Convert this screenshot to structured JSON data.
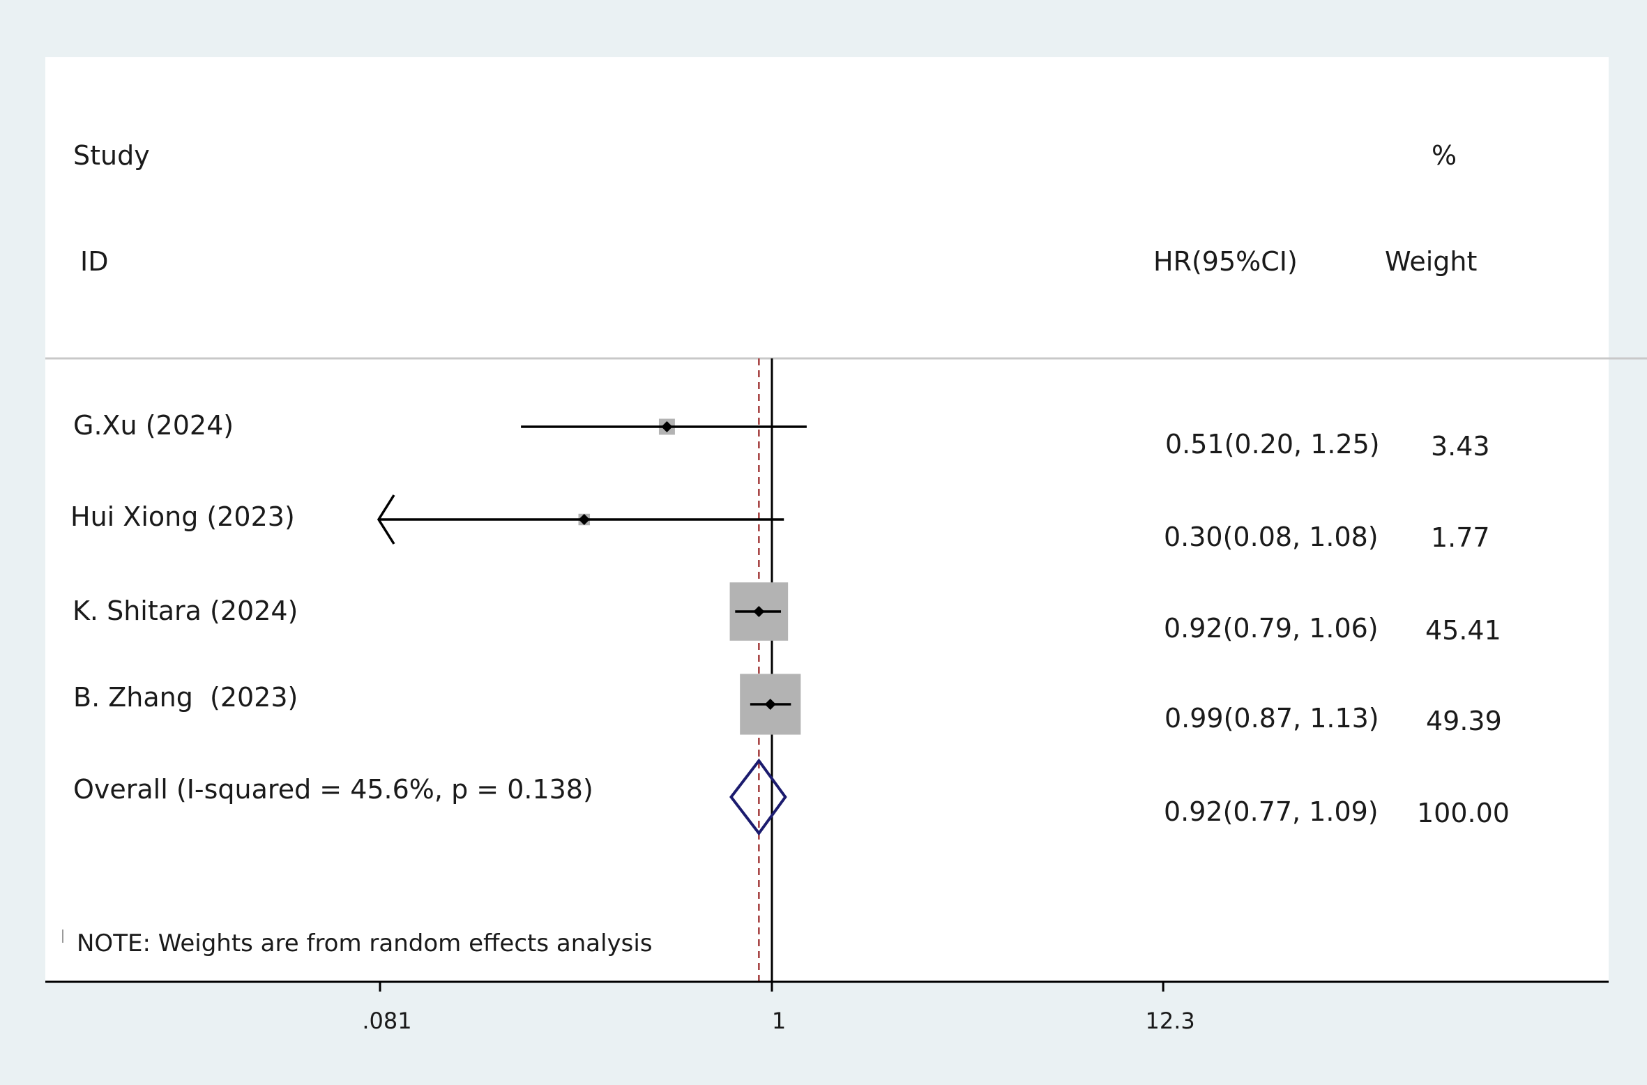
{
  "header": {
    "study_label": "Study",
    "id_label": "ID",
    "percent_label": "%",
    "effect_label": "HR(95%CI)",
    "weight_label": "Weight"
  },
  "note": "NOTE: Weights are from random effects analysis",
  "colors": {
    "background": "#eaf1f3",
    "panel": "#ffffff",
    "weight_box": "#b3b3b3",
    "diamond": "#1b1b6e",
    "reference_dashed": "#a33a3a"
  },
  "chart_data": {
    "type": "forest",
    "scale": "log",
    "x_ticks": [
      {
        "value": 0.081,
        "label": ".081"
      },
      {
        "value": 1,
        "label": "1"
      },
      {
        "value": 12.3,
        "label": "12.3"
      }
    ],
    "xlim": [
      0.081,
      12.3
    ],
    "null_line": 1,
    "overall_line": 0.92,
    "studies": [
      {
        "id": "G.Xu (2024)",
        "hr": 0.51,
        "lower": 0.2,
        "upper": 1.25,
        "ci_text": "0.51(0.20, 1.25)",
        "weight": 3.43,
        "weight_text": "3.43"
      },
      {
        "id": "Hui Xiong (2023)",
        "hr": 0.3,
        "lower": 0.08,
        "upper": 1.08,
        "ci_text": "0.30(0.08, 1.08)",
        "weight": 1.77,
        "weight_text": "1.77",
        "arrow_left": true
      },
      {
        "id": "K. Shitara (2024)",
        "hr": 0.92,
        "lower": 0.79,
        "upper": 1.06,
        "ci_text": "0.92(0.79, 1.06)",
        "weight": 45.41,
        "weight_text": "45.41"
      },
      {
        "id": "B. Zhang  (2023)",
        "hr": 0.99,
        "lower": 0.87,
        "upper": 1.13,
        "ci_text": "0.99(0.87, 1.13)",
        "weight": 49.39,
        "weight_text": "49.39"
      }
    ],
    "overall": {
      "label": "Overall (I-squared = 45.6%, p = 0.138)",
      "hr": 0.92,
      "lower": 0.77,
      "upper": 1.09,
      "ci_text": "0.92(0.77, 1.09)",
      "weight_text": "100.00"
    }
  }
}
